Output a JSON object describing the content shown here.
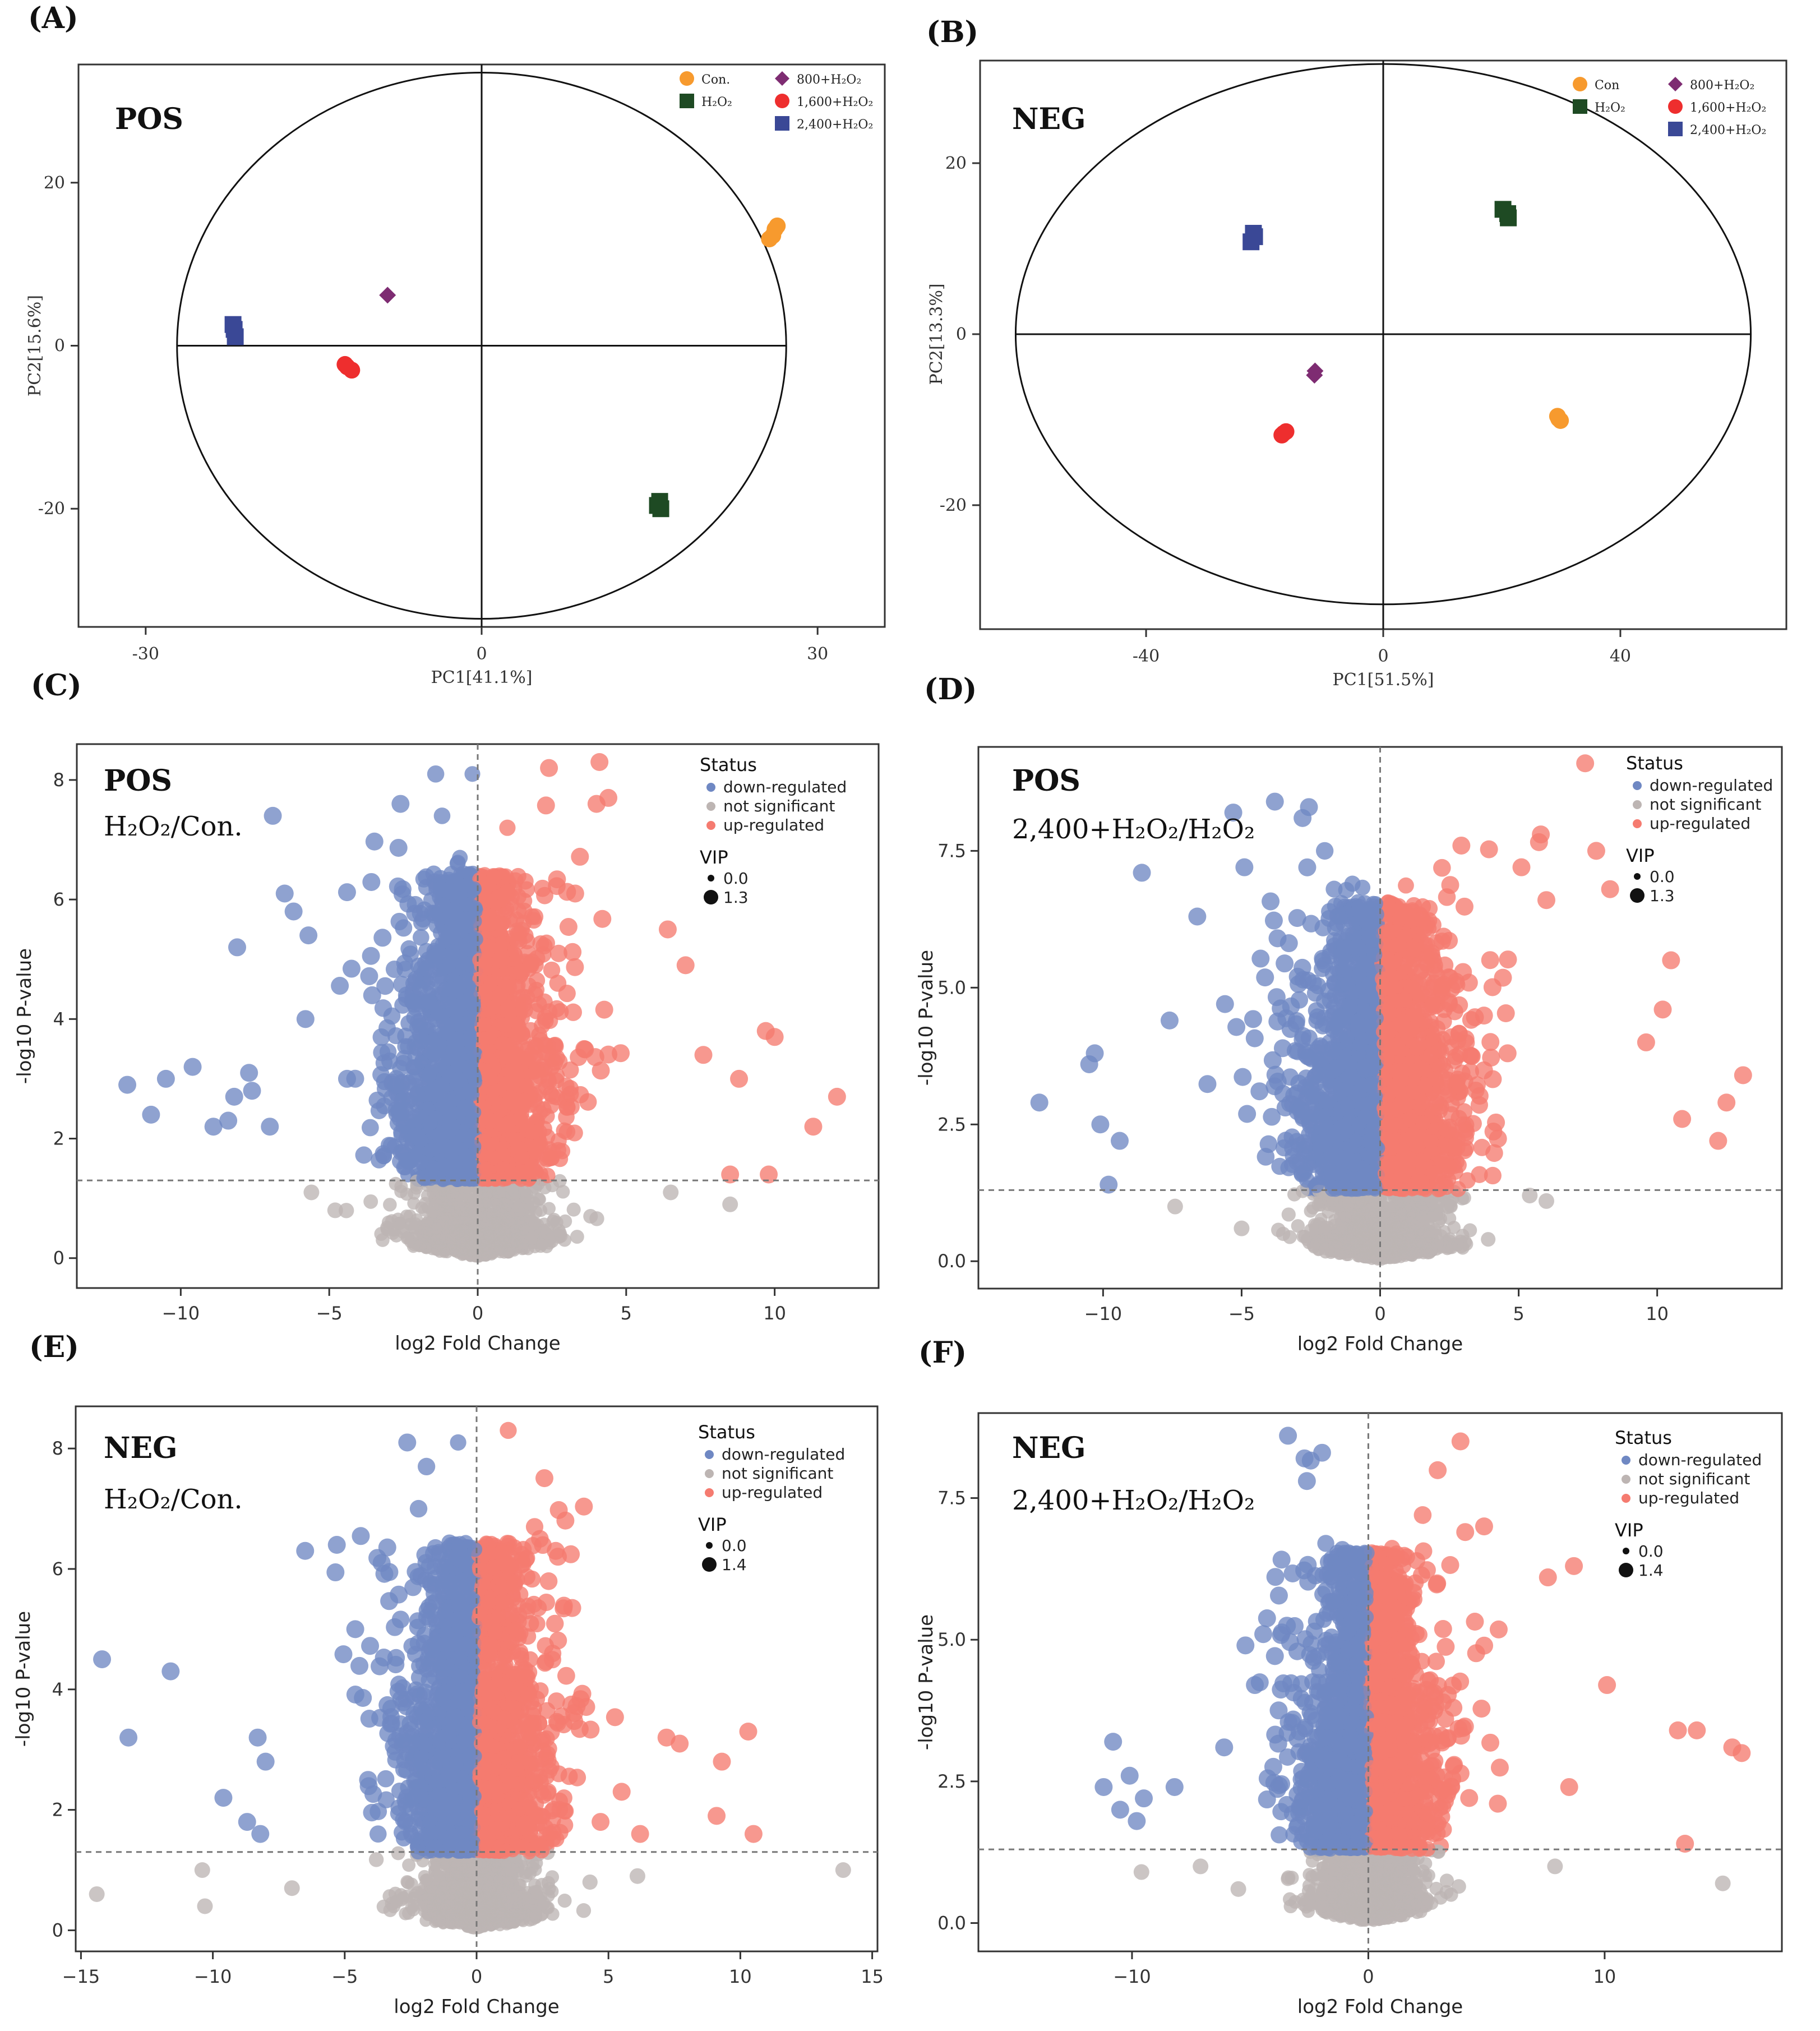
{
  "colors": {
    "orange": "#F79A2E",
    "green": "#1E4A23",
    "purple": "#7E2C72",
    "red": "#EE2E2E",
    "navy": "#3A4896",
    "down": "#6F88C3",
    "ns": "#BDB5B3",
    "up": "#F57B70",
    "axis": "#333333",
    "dash": "#777777"
  },
  "chart_data": [
    {
      "id": "A",
      "type": "scatter",
      "panel_label": "(A)",
      "mode_label": "POS",
      "xlabel": "PC1[41.1%]",
      "ylabel": "PC2[15.6%]",
      "xlim": [
        -36,
        36
      ],
      "ylim": [
        -34.5,
        34.5
      ],
      "xticks": [
        -30,
        0,
        30
      ],
      "yticks": [
        -20,
        0,
        20
      ],
      "ellipse": {
        "cx": 0,
        "cy": 0,
        "rx": 27.2,
        "ry": 33.5
      },
      "legend": [
        {
          "name": "Con.",
          "shape": "circle",
          "color": "orange"
        },
        {
          "name": "H₂O₂",
          "shape": "square",
          "color": "green"
        },
        {
          "name": "800+H₂O₂",
          "shape": "diamond",
          "color": "purple"
        },
        {
          "name": "1,600+H₂O₂",
          "shape": "circle",
          "color": "red"
        },
        {
          "name": "2,400+H₂O₂",
          "shape": "square",
          "color": "navy"
        }
      ],
      "series": [
        {
          "name": "Con.",
          "shape": "circle",
          "color": "orange",
          "points": [
            [
              26.2,
              14.3
            ],
            [
              26.0,
              13.5
            ],
            [
              25.7,
              13.1
            ],
            [
              26.4,
              14.7
            ]
          ]
        },
        {
          "name": "H₂O₂",
          "shape": "square",
          "color": "green",
          "points": [
            [
              15.9,
              -19.1
            ],
            [
              16.0,
              -20.0
            ],
            [
              15.7,
              -19.6
            ]
          ]
        },
        {
          "name": "800+H₂O₂",
          "shape": "diamond",
          "color": "purple",
          "points": [
            [
              -8.4,
              6.2
            ]
          ]
        },
        {
          "name": "1,600+H₂O₂",
          "shape": "circle",
          "color": "red",
          "points": [
            [
              -12.0,
              -2.6
            ],
            [
              -11.6,
              -3.0
            ],
            [
              -12.2,
              -2.3
            ]
          ]
        },
        {
          "name": "2,400+H₂O₂",
          "shape": "square",
          "color": "navy",
          "points": [
            [
              -22.1,
              2.0
            ],
            [
              -22.0,
              1.1
            ],
            [
              -22.2,
              2.6
            ]
          ]
        }
      ]
    },
    {
      "id": "B",
      "type": "scatter",
      "panel_label": "(B)",
      "mode_label": "NEG",
      "xlabel": "PC1[51.5%]",
      "ylabel": "PC2[13.3%]",
      "xlim": [
        -68,
        68
      ],
      "ylim": [
        -34.5,
        32
      ],
      "xticks": [
        -40,
        0,
        40
      ],
      "yticks": [
        -20,
        0,
        20
      ],
      "ellipse": {
        "cx": 0,
        "cy": 0,
        "rx": 62,
        "ry": 31.6
      },
      "legend": [
        {
          "name": "Con",
          "shape": "circle",
          "color": "orange"
        },
        {
          "name": "H₂O₂",
          "shape": "square",
          "color": "green"
        },
        {
          "name": "800+H₂O₂",
          "shape": "diamond",
          "color": "purple"
        },
        {
          "name": "1,600+H₂O₂",
          "shape": "circle",
          "color": "red"
        },
        {
          "name": "2,400+H₂O₂",
          "shape": "square",
          "color": "navy"
        }
      ],
      "series": [
        {
          "name": "Con",
          "shape": "circle",
          "color": "orange",
          "points": [
            [
              29.4,
              -9.6
            ],
            [
              29.9,
              -10.1
            ],
            [
              29.6,
              -9.9
            ]
          ]
        },
        {
          "name": "H₂O₂",
          "shape": "square",
          "color": "green",
          "points": [
            [
              20.2,
              14.6
            ],
            [
              21.1,
              13.6
            ],
            [
              21.0,
              14.1
            ]
          ]
        },
        {
          "name": "800+H₂O₂",
          "shape": "diamond",
          "color": "purple",
          "points": [
            [
              -11.5,
              -4.3
            ],
            [
              -11.6,
              -4.8
            ]
          ]
        },
        {
          "name": "1,600+H₂O₂",
          "shape": "circle",
          "color": "red",
          "points": [
            [
              -16.8,
              -11.6
            ],
            [
              -16.4,
              -11.4
            ],
            [
              -17.1,
              -11.8
            ]
          ]
        },
        {
          "name": "2,400+H₂O₂",
          "shape": "square",
          "color": "navy",
          "points": [
            [
              -21.9,
              11.8
            ],
            [
              -22.3,
              10.8
            ],
            [
              -21.7,
              11.4
            ]
          ]
        }
      ]
    },
    {
      "id": "C",
      "type": "scatter",
      "panel_label": "(C)",
      "mode_label": "POS",
      "comparison": "H₂O₂/Con.",
      "xlabel": "log2 Fold Change",
      "ylabel": "-log10 P-value",
      "xlim": [
        -13.5,
        13.5
      ],
      "ylim": [
        -0.5,
        8.6
      ],
      "xticks": [
        -10,
        -5,
        0,
        5,
        10
      ],
      "yticks": [
        0,
        2,
        4,
        6,
        8
      ],
      "threshold_y": 1.3,
      "legend": {
        "title": "Status",
        "items": [
          "down-regulated",
          "not significant",
          "up-regulated"
        ],
        "vip_title": "VIP",
        "vip_values": [
          "0.0",
          "1.3"
        ]
      },
      "generator": {
        "xMax": 12.2,
        "yMax": 8.3,
        "xSpread": 3.4,
        "count": 1200
      },
      "highlights": {
        "down": [
          [
            -11.8,
            2.9
          ],
          [
            -11.0,
            2.4
          ],
          [
            -10.5,
            3.0
          ],
          [
            -9.6,
            3.2
          ],
          [
            -8.9,
            2.2
          ],
          [
            -8.4,
            2.3
          ],
          [
            -8.2,
            2.7
          ],
          [
            -7.7,
            3.1
          ],
          [
            -7.6,
            2.8
          ],
          [
            -7.0,
            2.2
          ],
          [
            -8.1,
            5.2
          ],
          [
            -6.9,
            7.4
          ],
          [
            -6.5,
            6.1
          ],
          [
            -6.2,
            5.8
          ],
          [
            -5.8,
            4.0
          ],
          [
            -5.7,
            5.4
          ],
          [
            -4.4,
            3.0
          ],
          [
            -2.6,
            7.6
          ],
          [
            -1.2,
            7.4
          ],
          [
            -0.6,
            6.7
          ]
        ],
        "up": [
          [
            2.4,
            8.2
          ],
          [
            4.1,
            8.3
          ],
          [
            4.4,
            7.7
          ],
          [
            4.0,
            7.6
          ],
          [
            1.0,
            7.2
          ],
          [
            6.4,
            5.5
          ],
          [
            7.0,
            4.9
          ],
          [
            9.7,
            3.8
          ],
          [
            10.0,
            3.7
          ],
          [
            12.1,
            2.7
          ],
          [
            11.3,
            2.2
          ],
          [
            9.8,
            1.4
          ],
          [
            8.5,
            1.4
          ],
          [
            7.6,
            3.4
          ],
          [
            8.8,
            3.0
          ]
        ],
        "ns": [
          [
            -5.6,
            1.1
          ],
          [
            -4.8,
            0.8
          ],
          [
            6.5,
            1.1
          ],
          [
            8.5,
            0.9
          ],
          [
            -3.0,
            0.6
          ],
          [
            3.8,
            0.7
          ]
        ]
      }
    },
    {
      "id": "D",
      "type": "scatter",
      "panel_label": "(D)",
      "mode_label": "POS",
      "comparison": "2,400+H₂O₂/H₂O₂",
      "xlabel": "log2 Fold Change",
      "ylabel": "-log10 P-value",
      "xlim": [
        -14.5,
        14.5
      ],
      "ylim": [
        -0.5,
        9.4
      ],
      "xticks": [
        -10,
        -5,
        0,
        5,
        10
      ],
      "yticks": [
        0.0,
        2.5,
        5.0,
        7.5
      ],
      "threshold_y": 1.3,
      "legend": {
        "title": "Status",
        "items": [
          "down-regulated",
          "not significant",
          "up-regulated"
        ],
        "vip_title": "VIP",
        "vip_values": [
          "0.0",
          "1.3"
        ]
      },
      "generator": {
        "xMax": 13.2,
        "yMax": 8.5,
        "xSpread": 3.8,
        "count": 1300
      },
      "highlights": {
        "down": [
          [
            -12.3,
            2.9
          ],
          [
            -10.5,
            3.6
          ],
          [
            -10.3,
            3.8
          ],
          [
            -10.1,
            2.5
          ],
          [
            -9.4,
            2.2
          ],
          [
            -8.6,
            7.1
          ],
          [
            -7.6,
            4.4
          ],
          [
            -6.6,
            6.3
          ],
          [
            -5.3,
            8.2
          ],
          [
            -4.9,
            7.2
          ],
          [
            -3.8,
            8.4
          ],
          [
            -2.8,
            8.1
          ],
          [
            -2.0,
            7.5
          ],
          [
            -1.0,
            6.9
          ],
          [
            -5.6,
            4.7
          ],
          [
            -9.8,
            1.4
          ]
        ],
        "up": [
          [
            7.4,
            9.1
          ],
          [
            5.8,
            7.8
          ],
          [
            7.8,
            7.5
          ],
          [
            10.5,
            5.5
          ],
          [
            13.1,
            3.4
          ],
          [
            12.5,
            2.9
          ],
          [
            12.2,
            2.2
          ],
          [
            10.2,
            4.6
          ],
          [
            9.6,
            4.0
          ],
          [
            10.9,
            2.6
          ],
          [
            4.6,
            3.8
          ],
          [
            5.1,
            7.2
          ],
          [
            6.0,
            6.6
          ],
          [
            8.3,
            6.8
          ]
        ],
        "ns": [
          [
            -7.4,
            1.0
          ],
          [
            -5.0,
            0.6
          ],
          [
            5.4,
            1.2
          ],
          [
            3.9,
            0.4
          ],
          [
            6.0,
            1.1
          ],
          [
            -3.5,
            0.5
          ]
        ]
      }
    },
    {
      "id": "E",
      "type": "scatter",
      "panel_label": "(E)",
      "mode_label": "NEG",
      "comparison": "H₂O₂/Con.",
      "xlabel": "log2 Fold Change",
      "ylabel": "-log10 P-value",
      "xlim": [
        -15.2,
        15.2
      ],
      "ylim": [
        -0.35,
        8.7
      ],
      "xticks": [
        -15,
        -10,
        -5,
        0,
        5,
        10,
        15
      ],
      "yticks": [
        0,
        2,
        4,
        6,
        8
      ],
      "threshold_y": 1.3,
      "legend": {
        "title": "Status",
        "items": [
          "down-regulated",
          "not significant",
          "up-regulated"
        ],
        "vip_title": "VIP",
        "vip_values": [
          "0.0",
          "1.4"
        ]
      },
      "generator": {
        "xMax": 14.5,
        "yMax": 8.3,
        "xSpread": 3.4,
        "count": 1200
      },
      "highlights": {
        "down": [
          [
            -14.2,
            4.5
          ],
          [
            -13.2,
            3.2
          ],
          [
            -11.6,
            4.3
          ],
          [
            -9.6,
            2.2
          ],
          [
            -8.3,
            3.2
          ],
          [
            -8.0,
            2.8
          ],
          [
            -8.7,
            1.8
          ],
          [
            -8.2,
            1.6
          ],
          [
            -6.5,
            6.3
          ],
          [
            -5.3,
            6.4
          ],
          [
            -1.9,
            7.7
          ],
          [
            -0.7,
            8.1
          ],
          [
            -2.2,
            7.0
          ],
          [
            -3.6,
            6.1
          ],
          [
            -4.6,
            5.0
          ]
        ],
        "up": [
          [
            1.2,
            8.3
          ],
          [
            2.2,
            6.7
          ],
          [
            2.4,
            6.5
          ],
          [
            3.0,
            6.3
          ],
          [
            7.2,
            3.2
          ],
          [
            7.7,
            3.1
          ],
          [
            9.3,
            2.8
          ],
          [
            10.3,
            3.3
          ],
          [
            10.5,
            1.6
          ],
          [
            9.1,
            1.9
          ],
          [
            4.7,
            1.8
          ],
          [
            5.5,
            2.3
          ],
          [
            6.2,
            1.6
          ]
        ],
        "ns": [
          [
            -14.4,
            0.6
          ],
          [
            -10.4,
            1.0
          ],
          [
            -10.3,
            0.4
          ],
          [
            13.9,
            1.0
          ],
          [
            6.1,
            0.9
          ],
          [
            4.3,
            0.8
          ],
          [
            -7.0,
            0.7
          ]
        ]
      }
    },
    {
      "id": "F",
      "type": "scatter",
      "panel_label": "(F)",
      "mode_label": "NEG",
      "comparison": "2,400+H₂O₂/H₂O₂",
      "xlabel": "log2 Fold Change",
      "ylabel": "-log10 P-value",
      "xlim": [
        -16.5,
        17.5
      ],
      "ylim": [
        -0.5,
        9.0
      ],
      "xticks": [
        -10,
        0,
        10
      ],
      "yticks": [
        0.0,
        2.5,
        5.0,
        7.5
      ],
      "threshold_y": 1.3,
      "legend": {
        "title": "Status",
        "items": [
          "down-regulated",
          "not significant",
          "up-regulated"
        ],
        "vip_title": "VIP",
        "vip_values": [
          "0.0",
          "1.4"
        ]
      },
      "generator": {
        "xMax": 15.9,
        "yMax": 8.5,
        "xSpread": 3.6,
        "count": 1300
      },
      "highlights": {
        "down": [
          [
            -11.2,
            2.4
          ],
          [
            -10.8,
            3.2
          ],
          [
            -10.5,
            2.0
          ],
          [
            -10.1,
            2.6
          ],
          [
            -9.5,
            2.2
          ],
          [
            -9.8,
            1.8
          ],
          [
            -5.2,
            4.9
          ],
          [
            -4.8,
            4.2
          ],
          [
            -3.4,
            8.6
          ],
          [
            -2.7,
            8.2
          ],
          [
            -2.6,
            7.8
          ],
          [
            -1.1,
            6.6
          ],
          [
            -1.8,
            6.7
          ],
          [
            -0.4,
            6.2
          ],
          [
            -8.2,
            2.4
          ],
          [
            -6.1,
            3.1
          ]
        ],
        "up": [
          [
            3.9,
            8.5
          ],
          [
            2.3,
            7.2
          ],
          [
            4.1,
            6.9
          ],
          [
            4.9,
            7.0
          ],
          [
            7.6,
            6.1
          ],
          [
            8.7,
            6.3
          ],
          [
            15.4,
            3.1
          ],
          [
            15.8,
            3.0
          ],
          [
            13.9,
            3.4
          ],
          [
            13.1,
            3.4
          ],
          [
            10.1,
            4.2
          ],
          [
            13.4,
            1.4
          ],
          [
            8.5,
            2.4
          ]
        ],
        "ns": [
          [
            -9.6,
            0.9
          ],
          [
            -7.1,
            1.0
          ],
          [
            -5.5,
            0.6
          ],
          [
            15.0,
            0.7
          ],
          [
            7.9,
            1.0
          ],
          [
            3.5,
            0.5
          ]
        ]
      }
    }
  ]
}
